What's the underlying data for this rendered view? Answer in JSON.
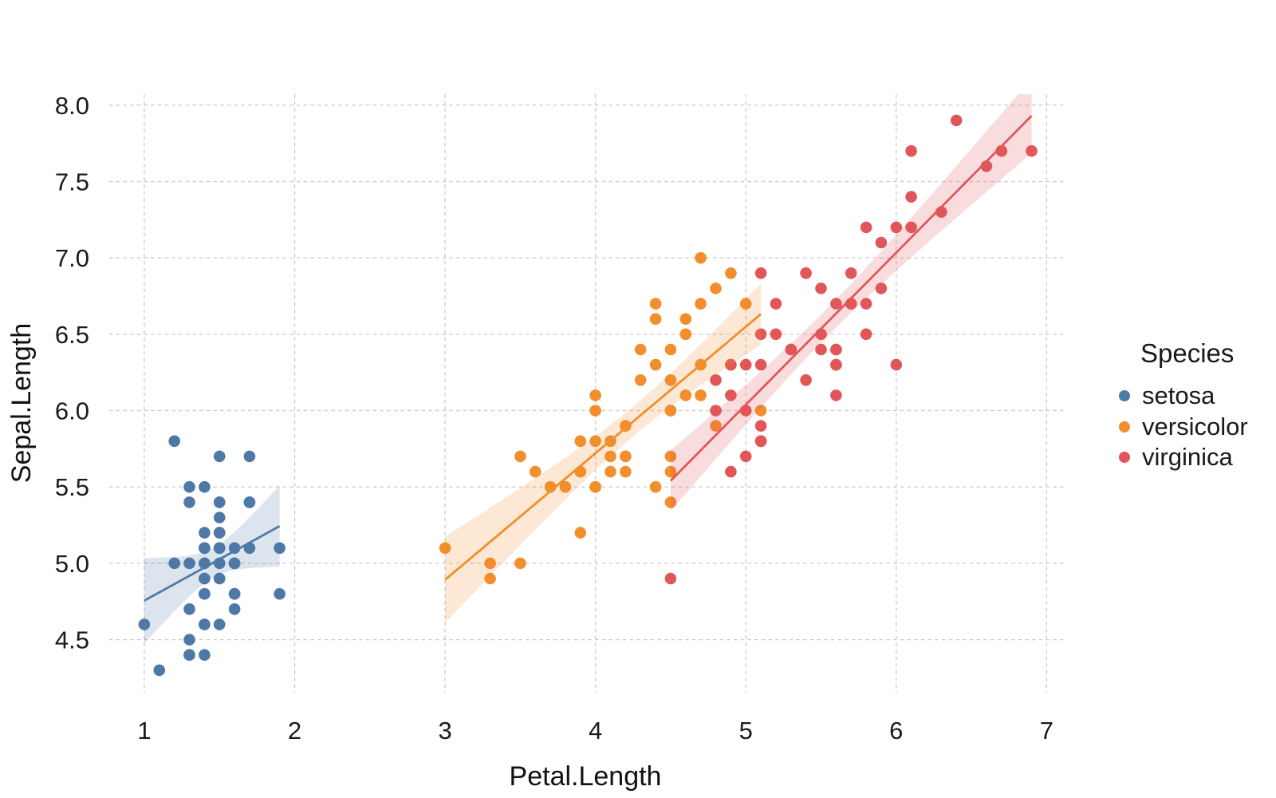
{
  "chart_data": {
    "type": "scatter",
    "title": "",
    "xlabel": "Petal.Length",
    "ylabel": "Sepal.Length",
    "legend": {
      "title": "Species",
      "position": "right"
    },
    "x_ticks": [
      1,
      2,
      3,
      4,
      5,
      6,
      7
    ],
    "x_tick_labels": [
      "1",
      "2",
      "3",
      "4",
      "5",
      "6",
      "7"
    ],
    "y_ticks": [
      4.5,
      5.0,
      5.5,
      6.0,
      6.5,
      7.0,
      7.5,
      8.0
    ],
    "y_tick_labels": [
      "4.5",
      "5.0",
      "5.5",
      "6.0",
      "6.5",
      "7.0",
      "7.5",
      "8.0"
    ],
    "xlim": [
      0.767,
      7.136
    ],
    "ylim": [
      4.153,
      8.072
    ],
    "grid": {
      "style": "dashed",
      "color": "#c9c9c9"
    },
    "smoother": {
      "type": "linear",
      "ci_level": 0.95,
      "t_critical": 2.0106,
      "ribbon_opacity": 0.2,
      "line_width": 2.8
    },
    "marker": {
      "radius": 7.3
    },
    "series": [
      {
        "name": "setosa",
        "color": "#4E79A7",
        "points": [
          [
            1.4,
            5.1
          ],
          [
            1.4,
            4.9
          ],
          [
            1.3,
            4.7
          ],
          [
            1.5,
            4.6
          ],
          [
            1.4,
            5.0
          ],
          [
            1.7,
            5.4
          ],
          [
            1.4,
            4.6
          ],
          [
            1.5,
            5.0
          ],
          [
            1.4,
            4.4
          ],
          [
            1.5,
            4.9
          ],
          [
            1.5,
            5.4
          ],
          [
            1.6,
            4.8
          ],
          [
            1.4,
            4.8
          ],
          [
            1.1,
            4.3
          ],
          [
            1.2,
            5.8
          ],
          [
            1.5,
            5.7
          ],
          [
            1.3,
            5.4
          ],
          [
            1.4,
            5.1
          ],
          [
            1.7,
            5.7
          ],
          [
            1.5,
            5.1
          ],
          [
            1.7,
            5.4
          ],
          [
            1.5,
            5.1
          ],
          [
            1.0,
            4.6
          ],
          [
            1.7,
            5.1
          ],
          [
            1.9,
            4.8
          ],
          [
            1.6,
            5.0
          ],
          [
            1.6,
            5.0
          ],
          [
            1.5,
            5.2
          ],
          [
            1.4,
            5.2
          ],
          [
            1.6,
            4.7
          ],
          [
            1.6,
            4.8
          ],
          [
            1.5,
            5.4
          ],
          [
            1.5,
            5.2
          ],
          [
            1.4,
            5.5
          ],
          [
            1.5,
            4.9
          ],
          [
            1.2,
            5.0
          ],
          [
            1.3,
            5.5
          ],
          [
            1.4,
            4.9
          ],
          [
            1.3,
            4.4
          ],
          [
            1.5,
            5.1
          ],
          [
            1.3,
            5.0
          ],
          [
            1.3,
            4.5
          ],
          [
            1.3,
            4.4
          ],
          [
            1.6,
            5.0
          ],
          [
            1.9,
            5.1
          ],
          [
            1.4,
            4.8
          ],
          [
            1.6,
            5.1
          ],
          [
            1.4,
            4.6
          ],
          [
            1.5,
            5.3
          ],
          [
            1.4,
            5.0
          ]
        ]
      },
      {
        "name": "versicolor",
        "color": "#F28E2B",
        "points": [
          [
            4.7,
            7.0
          ],
          [
            4.5,
            6.4
          ],
          [
            4.9,
            6.9
          ],
          [
            4.0,
            5.5
          ],
          [
            4.6,
            6.5
          ],
          [
            4.5,
            5.7
          ],
          [
            4.7,
            6.3
          ],
          [
            3.3,
            4.9
          ],
          [
            4.6,
            6.6
          ],
          [
            3.9,
            5.2
          ],
          [
            3.5,
            5.0
          ],
          [
            4.2,
            5.9
          ],
          [
            4.0,
            6.0
          ],
          [
            4.7,
            6.1
          ],
          [
            3.6,
            5.6
          ],
          [
            4.4,
            6.7
          ],
          [
            4.5,
            5.6
          ],
          [
            4.1,
            5.8
          ],
          [
            4.5,
            6.2
          ],
          [
            3.9,
            5.6
          ],
          [
            4.8,
            5.9
          ],
          [
            4.0,
            6.1
          ],
          [
            4.9,
            6.3
          ],
          [
            4.7,
            6.1
          ],
          [
            4.3,
            6.4
          ],
          [
            4.4,
            6.6
          ],
          [
            4.8,
            6.8
          ],
          [
            5.0,
            6.7
          ],
          [
            4.5,
            6.0
          ],
          [
            3.5,
            5.7
          ],
          [
            3.8,
            5.5
          ],
          [
            3.7,
            5.5
          ],
          [
            3.9,
            5.8
          ],
          [
            5.1,
            6.0
          ],
          [
            4.5,
            5.4
          ],
          [
            4.5,
            6.0
          ],
          [
            4.7,
            6.7
          ],
          [
            4.4,
            6.3
          ],
          [
            4.1,
            5.6
          ],
          [
            4.0,
            5.5
          ],
          [
            4.4,
            5.5
          ],
          [
            4.6,
            6.1
          ],
          [
            4.0,
            5.8
          ],
          [
            3.3,
            5.0
          ],
          [
            4.2,
            5.6
          ],
          [
            4.2,
            5.7
          ],
          [
            4.2,
            5.7
          ],
          [
            4.3,
            6.2
          ],
          [
            3.0,
            5.1
          ],
          [
            4.1,
            5.7
          ]
        ]
      },
      {
        "name": "virginica",
        "color": "#E15759",
        "points": [
          [
            6.0,
            6.3
          ],
          [
            5.1,
            5.8
          ],
          [
            5.9,
            7.1
          ],
          [
            5.6,
            6.3
          ],
          [
            5.8,
            6.5
          ],
          [
            6.6,
            7.6
          ],
          [
            4.5,
            4.9
          ],
          [
            6.3,
            7.3
          ],
          [
            5.8,
            6.7
          ],
          [
            6.1,
            7.2
          ],
          [
            5.1,
            6.5
          ],
          [
            5.3,
            6.4
          ],
          [
            5.5,
            6.8
          ],
          [
            5.0,
            5.7
          ],
          [
            5.1,
            5.8
          ],
          [
            5.3,
            6.4
          ],
          [
            5.5,
            6.5
          ],
          [
            6.7,
            7.7
          ],
          [
            6.9,
            7.7
          ],
          [
            5.0,
            6.0
          ],
          [
            5.7,
            6.9
          ],
          [
            4.9,
            5.6
          ],
          [
            6.7,
            7.7
          ],
          [
            4.9,
            6.3
          ],
          [
            5.7,
            6.7
          ],
          [
            6.0,
            7.2
          ],
          [
            4.8,
            6.2
          ],
          [
            4.9,
            6.1
          ],
          [
            5.6,
            6.4
          ],
          [
            5.8,
            7.2
          ],
          [
            6.1,
            7.4
          ],
          [
            6.4,
            7.9
          ],
          [
            5.6,
            6.4
          ],
          [
            5.1,
            6.3
          ],
          [
            5.6,
            6.1
          ],
          [
            6.1,
            7.7
          ],
          [
            5.6,
            6.3
          ],
          [
            5.5,
            6.4
          ],
          [
            4.8,
            6.0
          ],
          [
            5.4,
            6.9
          ],
          [
            5.6,
            6.7
          ],
          [
            5.1,
            6.9
          ],
          [
            5.1,
            5.8
          ],
          [
            5.9,
            6.8
          ],
          [
            5.7,
            6.7
          ],
          [
            5.2,
            6.7
          ],
          [
            5.0,
            6.3
          ],
          [
            5.2,
            6.5
          ],
          [
            5.4,
            6.2
          ],
          [
            5.1,
            5.9
          ]
        ]
      }
    ]
  }
}
